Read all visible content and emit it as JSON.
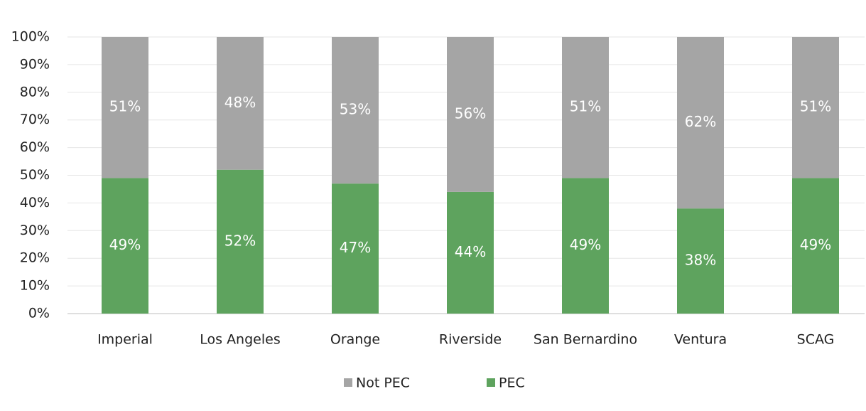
{
  "chart_data": {
    "type": "stacked_bar",
    "categories": [
      "Imperial",
      "Los Angeles",
      "Orange",
      "Riverside",
      "San Bernardino",
      "Ventura",
      "SCAG"
    ],
    "series": [
      {
        "name": "Not PEC",
        "color": "#a5a5a5",
        "values": [
          51,
          48,
          53,
          56,
          51,
          62,
          51
        ],
        "value_labels": [
          "51%",
          "48%",
          "53%",
          "56%",
          "51%",
          "62%",
          "51%"
        ]
      },
      {
        "name": "PEC",
        "color": "#5ea35e",
        "values": [
          49,
          52,
          47,
          44,
          49,
          38,
          49
        ],
        "value_labels": [
          "49%",
          "52%",
          "47%",
          "44%",
          "49%",
          "38%",
          "49%"
        ]
      }
    ],
    "ylim": [
      0,
      100
    ],
    "yticks": [
      {
        "value": 0,
        "label": "0%"
      },
      {
        "value": 10,
        "label": "10%"
      },
      {
        "value": 20,
        "label": "20%"
      },
      {
        "value": 30,
        "label": "30%"
      },
      {
        "value": 40,
        "label": "40%"
      },
      {
        "value": 50,
        "label": "50%"
      },
      {
        "value": 60,
        "label": "60%"
      },
      {
        "value": 70,
        "label": "70%"
      },
      {
        "value": 80,
        "label": "80%"
      },
      {
        "value": 90,
        "label": "90%"
      },
      {
        "value": 100,
        "label": "100%"
      }
    ],
    "grid": true,
    "legend": "bottom"
  }
}
